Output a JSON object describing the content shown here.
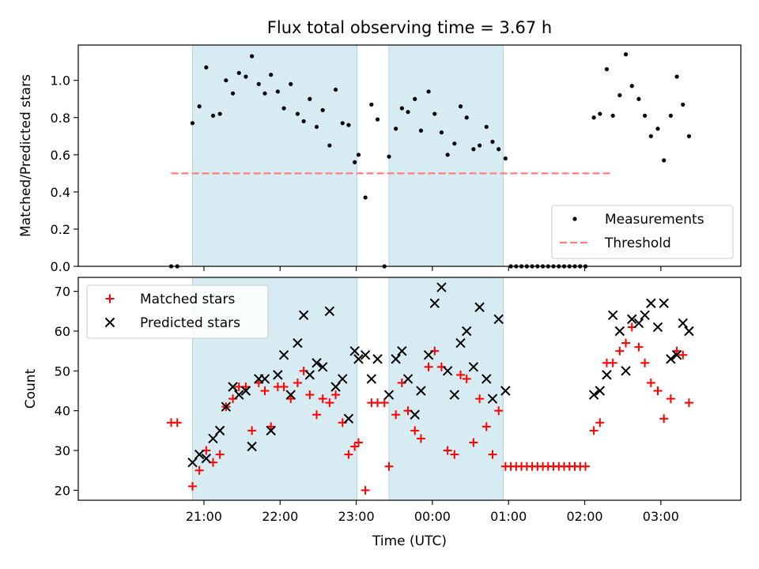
{
  "figure": {
    "title": "Flux total observing time = 3.67 h",
    "xlabel": "Time (UTC)",
    "xtick_labels": [
      "21:00",
      "22:00",
      "23:00",
      "00:00",
      "01:00",
      "02:00",
      "03:00"
    ]
  },
  "colors": {
    "shade": "#add8e6",
    "measurements": "#000000",
    "threshold": "#ff7f7f",
    "matched": "#ff0000",
    "predicted": "#000000"
  },
  "chart_data": [
    {
      "type": "scatter",
      "x_unit": "hours since 20:00 UTC (ticks shown as clock times)",
      "ylabel": "Matched/Predicted stars",
      "ylim": [
        0,
        1.19
      ],
      "yticks": [
        0.0,
        0.2,
        0.4,
        0.6,
        0.8,
        1.0
      ],
      "ytick_labels": [
        "0.0",
        "0.2",
        "0.4",
        "0.6",
        "0.8",
        "1.0"
      ],
      "legend": {
        "placement": "lower-right",
        "entries": [
          {
            "label": "Measurements"
          },
          {
            "label": "Threshold"
          }
        ]
      },
      "shaded_intervals": [
        [
          0.85,
          3.01
        ],
        [
          3.43,
          4.93
        ]
      ],
      "threshold": {
        "y": 0.5,
        "x_range": [
          0.57,
          6.33
        ]
      },
      "series": [
        {
          "name": "Measurements",
          "points": [
            [
              0.57,
              0.0
            ],
            [
              0.65,
              0.0
            ],
            [
              0.85,
              0.77
            ],
            [
              0.94,
              0.86
            ],
            [
              1.03,
              1.07
            ],
            [
              1.12,
              0.81
            ],
            [
              1.21,
              0.82
            ],
            [
              1.29,
              1.0
            ],
            [
              1.38,
              0.93
            ],
            [
              1.46,
              1.04
            ],
            [
              1.55,
              1.02
            ],
            [
              1.63,
              1.13
            ],
            [
              1.72,
              0.98
            ],
            [
              1.8,
              0.93
            ],
            [
              1.88,
              1.03
            ],
            [
              1.97,
              0.94
            ],
            [
              2.05,
              0.85
            ],
            [
              2.14,
              0.98
            ],
            [
              2.23,
              0.82
            ],
            [
              2.31,
              0.78
            ],
            [
              2.39,
              0.9
            ],
            [
              2.48,
              0.75
            ],
            [
              2.56,
              0.84
            ],
            [
              2.65,
              0.65
            ],
            [
              2.73,
              0.95
            ],
            [
              2.82,
              0.77
            ],
            [
              2.9,
              0.76
            ],
            [
              2.98,
              0.56
            ],
            [
              3.03,
              0.6
            ],
            [
              3.12,
              0.37
            ],
            [
              3.2,
              0.87
            ],
            [
              3.28,
              0.79
            ],
            [
              3.37,
              0.0
            ],
            [
              3.43,
              0.59
            ],
            [
              3.52,
              0.74
            ],
            [
              3.6,
              0.85
            ],
            [
              3.68,
              0.83
            ],
            [
              3.77,
              0.9
            ],
            [
              3.85,
              0.73
            ],
            [
              3.95,
              0.94
            ],
            [
              4.03,
              0.82
            ],
            [
              4.12,
              0.72
            ],
            [
              4.2,
              0.6
            ],
            [
              4.29,
              0.66
            ],
            [
              4.37,
              0.86
            ],
            [
              4.45,
              0.8
            ],
            [
              4.54,
              0.63
            ],
            [
              4.62,
              0.65
            ],
            [
              4.71,
              0.75
            ],
            [
              4.79,
              0.67
            ],
            [
              4.87,
              0.63
            ],
            [
              4.96,
              0.58
            ],
            [
              5.03,
              0.0
            ],
            [
              5.1,
              0.0
            ],
            [
              5.17,
              0.0
            ],
            [
              5.24,
              0.0
            ],
            [
              5.31,
              0.0
            ],
            [
              5.38,
              0.0
            ],
            [
              5.45,
              0.0
            ],
            [
              5.52,
              0.0
            ],
            [
              5.59,
              0.0
            ],
            [
              5.66,
              0.0
            ],
            [
              5.73,
              0.0
            ],
            [
              5.8,
              0.0
            ],
            [
              5.87,
              0.0
            ],
            [
              5.94,
              0.0
            ],
            [
              6.01,
              0.0
            ],
            [
              6.12,
              0.8
            ],
            [
              6.2,
              0.82
            ],
            [
              6.29,
              1.06
            ],
            [
              6.37,
              0.81
            ],
            [
              6.46,
              0.92
            ],
            [
              6.54,
              1.14
            ],
            [
              6.62,
              0.97
            ],
            [
              6.71,
              0.9
            ],
            [
              6.79,
              0.81
            ],
            [
              6.87,
              0.7
            ],
            [
              6.96,
              0.74
            ],
            [
              7.04,
              0.57
            ],
            [
              7.13,
              0.81
            ],
            [
              7.21,
              1.02
            ],
            [
              7.29,
              0.87
            ],
            [
              7.37,
              0.7
            ]
          ]
        }
      ]
    },
    {
      "type": "scatter",
      "x_unit": "hours since 20:00 UTC (ticks shown as clock times)",
      "ylabel": "Count",
      "ylim": [
        17.5,
        73.5
      ],
      "yticks": [
        20,
        30,
        40,
        50,
        60,
        70
      ],
      "ytick_labels": [
        "20",
        "30",
        "40",
        "50",
        "60",
        "70"
      ],
      "xlim": [
        -0.65,
        8.05
      ],
      "xticks": [
        1,
        2,
        3,
        4,
        5,
        6,
        7
      ],
      "legend": {
        "placement": "upper-left",
        "entries": [
          {
            "label": "Matched stars"
          },
          {
            "label": "Predicted stars"
          }
        ]
      },
      "shaded_intervals": [
        [
          0.85,
          3.01
        ],
        [
          3.43,
          4.93
        ]
      ],
      "series": [
        {
          "name": "Matched stars",
          "points": [
            [
              0.57,
              37
            ],
            [
              0.65,
              37
            ],
            [
              0.85,
              21
            ],
            [
              0.94,
              25
            ],
            [
              1.03,
              30
            ],
            [
              1.12,
              27
            ],
            [
              1.21,
              29
            ],
            [
              1.29,
              41
            ],
            [
              1.38,
              43
            ],
            [
              1.46,
              46
            ],
            [
              1.55,
              46
            ],
            [
              1.63,
              35
            ],
            [
              1.72,
              47
            ],
            [
              1.8,
              45
            ],
            [
              1.88,
              36
            ],
            [
              1.97,
              46
            ],
            [
              2.05,
              46
            ],
            [
              2.14,
              43
            ],
            [
              2.23,
              47
            ],
            [
              2.31,
              50
            ],
            [
              2.39,
              44
            ],
            [
              2.48,
              39
            ],
            [
              2.56,
              43
            ],
            [
              2.65,
              42
            ],
            [
              2.73,
              44
            ],
            [
              2.82,
              37
            ],
            [
              2.9,
              29
            ],
            [
              2.98,
              31
            ],
            [
              3.03,
              32
            ],
            [
              3.12,
              20
            ],
            [
              3.2,
              42
            ],
            [
              3.28,
              42
            ],
            [
              3.37,
              42
            ],
            [
              3.43,
              26
            ],
            [
              3.52,
              39
            ],
            [
              3.6,
              47
            ],
            [
              3.68,
              40
            ],
            [
              3.77,
              35
            ],
            [
              3.85,
              33
            ],
            [
              3.95,
              51
            ],
            [
              4.03,
              55
            ],
            [
              4.12,
              51
            ],
            [
              4.2,
              30
            ],
            [
              4.29,
              29
            ],
            [
              4.37,
              49
            ],
            [
              4.45,
              48
            ],
            [
              4.54,
              32
            ],
            [
              4.62,
              43
            ],
            [
              4.71,
              36
            ],
            [
              4.79,
              29
            ],
            [
              4.87,
              40
            ],
            [
              4.96,
              26
            ],
            [
              5.03,
              26
            ],
            [
              5.1,
              26
            ],
            [
              5.17,
              26
            ],
            [
              5.24,
              26
            ],
            [
              5.31,
              26
            ],
            [
              5.38,
              26
            ],
            [
              5.45,
              26
            ],
            [
              5.52,
              26
            ],
            [
              5.59,
              26
            ],
            [
              5.66,
              26
            ],
            [
              5.73,
              26
            ],
            [
              5.8,
              26
            ],
            [
              5.87,
              26
            ],
            [
              5.94,
              26
            ],
            [
              6.01,
              26
            ],
            [
              6.12,
              35
            ],
            [
              6.2,
              37
            ],
            [
              6.29,
              52
            ],
            [
              6.37,
              52
            ],
            [
              6.46,
              55
            ],
            [
              6.54,
              57
            ],
            [
              6.62,
              61
            ],
            [
              6.71,
              56
            ],
            [
              6.79,
              52
            ],
            [
              6.87,
              47
            ],
            [
              6.96,
              45
            ],
            [
              7.04,
              38
            ],
            [
              7.13,
              43
            ],
            [
              7.21,
              55
            ],
            [
              7.29,
              54
            ],
            [
              7.37,
              42
            ]
          ]
        },
        {
          "name": "Predicted stars",
          "points": [
            [
              0.85,
              27
            ],
            [
              0.94,
              29
            ],
            [
              1.03,
              28
            ],
            [
              1.12,
              33
            ],
            [
              1.21,
              35
            ],
            [
              1.29,
              41
            ],
            [
              1.38,
              46
            ],
            [
              1.46,
              44
            ],
            [
              1.55,
              45
            ],
            [
              1.63,
              31
            ],
            [
              1.72,
              48
            ],
            [
              1.8,
              48
            ],
            [
              1.88,
              35
            ],
            [
              1.97,
              49
            ],
            [
              2.05,
              54
            ],
            [
              2.14,
              44
            ],
            [
              2.23,
              57
            ],
            [
              2.31,
              64
            ],
            [
              2.39,
              49
            ],
            [
              2.48,
              52
            ],
            [
              2.56,
              51
            ],
            [
              2.65,
              65
            ],
            [
              2.73,
              46
            ],
            [
              2.82,
              48
            ],
            [
              2.9,
              38
            ],
            [
              2.98,
              55
            ],
            [
              3.03,
              53
            ],
            [
              3.12,
              54
            ],
            [
              3.2,
              48
            ],
            [
              3.28,
              53
            ],
            [
              3.43,
              44
            ],
            [
              3.52,
              53
            ],
            [
              3.6,
              55
            ],
            [
              3.68,
              48
            ],
            [
              3.77,
              39
            ],
            [
              3.85,
              45
            ],
            [
              3.95,
              54
            ],
            [
              4.03,
              67
            ],
            [
              4.12,
              71
            ],
            [
              4.2,
              50
            ],
            [
              4.29,
              44
            ],
            [
              4.37,
              57
            ],
            [
              4.45,
              60
            ],
            [
              4.54,
              51
            ],
            [
              4.62,
              66
            ],
            [
              4.71,
              48
            ],
            [
              4.79,
              43
            ],
            [
              4.87,
              63
            ],
            [
              4.96,
              45
            ],
            [
              6.12,
              44
            ],
            [
              6.2,
              45
            ],
            [
              6.29,
              49
            ],
            [
              6.37,
              64
            ],
            [
              6.46,
              60
            ],
            [
              6.54,
              50
            ],
            [
              6.62,
              63
            ],
            [
              6.71,
              62
            ],
            [
              6.79,
              64
            ],
            [
              6.87,
              67
            ],
            [
              6.96,
              61
            ],
            [
              7.04,
              67
            ],
            [
              7.13,
              53
            ],
            [
              7.21,
              54
            ],
            [
              7.29,
              62
            ],
            [
              7.37,
              60
            ]
          ]
        }
      ]
    }
  ]
}
